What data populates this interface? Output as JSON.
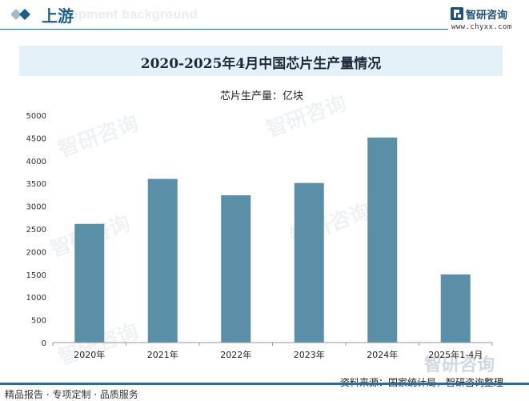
{
  "header": {
    "title": "上游",
    "bg_text": "elopment background"
  },
  "brand": {
    "name": "智研咨询",
    "url": "www.chyxx.com"
  },
  "chart_data": {
    "type": "bar",
    "title": "2020-2025年4月中国芯片生产量情况",
    "series_label": "芯片生产量：亿块",
    "categories": [
      "2020年",
      "2021年",
      "2022年",
      "2023年",
      "2024年",
      "2025年1-4月"
    ],
    "values": [
      2610,
      3600,
      3240,
      3510,
      4510,
      1500
    ],
    "yticks": [
      0,
      500,
      1000,
      1500,
      2000,
      2500,
      3000,
      3500,
      4000,
      4500,
      5000
    ],
    "ylim": [
      0,
      5000
    ],
    "grid": false,
    "bar_color": "#5b8fa8"
  },
  "footer": {
    "left": "精品报告 · 专项定制 · 品质服务",
    "source": "资料来源：国家统计局，智研咨询整理"
  },
  "watermark": {
    "text": "智研咨询"
  }
}
